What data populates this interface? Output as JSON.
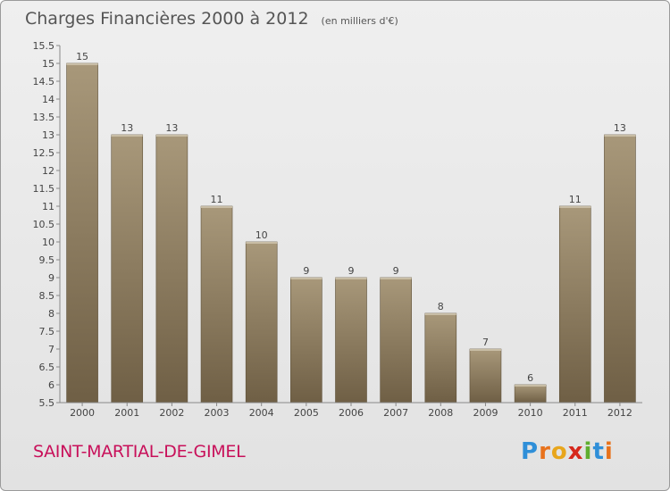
{
  "title": "Charges Financières 2000 à 2012",
  "subtitle": "(en milliers d'€)",
  "commune": "SAINT-MARTIAL-DE-GIMEL",
  "logo": {
    "text": "Proxiti"
  },
  "colors": {
    "bar": "#8b7a5e",
    "bar_light": "#a8987a",
    "bar_dark": "#6f5f45",
    "title": "#555555",
    "commune": "#c8105a"
  },
  "chart_data": {
    "type": "bar",
    "title": "Charges Financières 2000 à 2012",
    "subtitle": "(en milliers d'€)",
    "categories": [
      "2000",
      "2001",
      "2002",
      "2003",
      "2004",
      "2005",
      "2006",
      "2007",
      "2008",
      "2009",
      "2010",
      "2011",
      "2012"
    ],
    "values": [
      15,
      13,
      13,
      11,
      10,
      9,
      9,
      9,
      8,
      7,
      6,
      11,
      13
    ],
    "ylim": [
      5.5,
      15.5
    ],
    "yticks": [
      "5.5",
      "6",
      "6.5",
      "7",
      "7.5",
      "8",
      "8.5",
      "9",
      "9.5",
      "10",
      "10.5",
      "11",
      "11.5",
      "12",
      "12.5",
      "13",
      "13.5",
      "14",
      "14.5",
      "15",
      "15.5"
    ],
    "grid": false,
    "xlabel": "",
    "ylabel": ""
  }
}
